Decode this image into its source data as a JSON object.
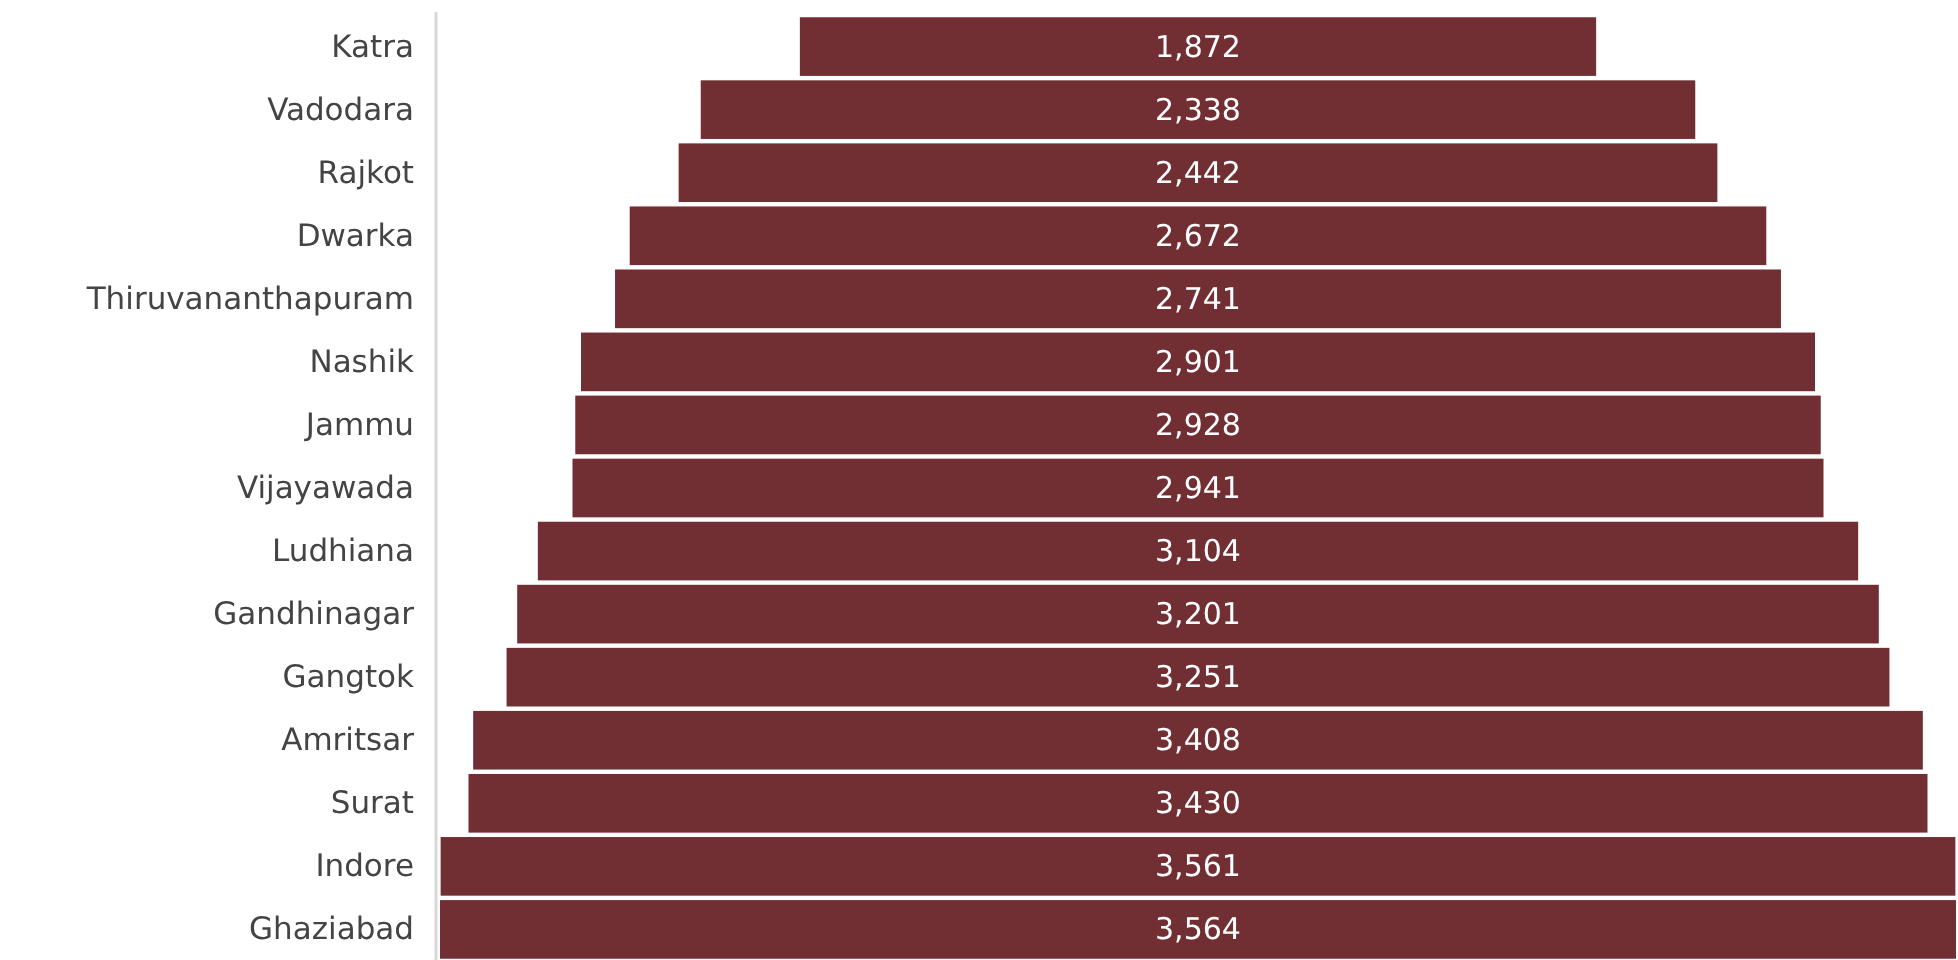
{
  "chart_data": {
    "type": "other",
    "categories": [
      "Katra",
      "Vadodara",
      "Rajkot",
      "Dwarka",
      "Thiruvananthapuram",
      "Nashik",
      "Jammu",
      "Vijayawada",
      "Ludhiana",
      "Gandhinagar",
      "Gangtok",
      "Amritsar",
      "Surat",
      "Indore",
      "Ghaziabad"
    ],
    "values": [
      1872,
      2338,
      2442,
      2672,
      2741,
      2901,
      2928,
      2941,
      3104,
      3201,
      3251,
      3408,
      3430,
      3561,
      3564
    ],
    "value_labels": [
      "1,872",
      "2,338",
      "2,442",
      "2,672",
      "2,741",
      "2,901",
      "2,928",
      "2,941",
      "3,104",
      "3,201",
      "3,251",
      "3,408",
      "3,430",
      "3,561",
      "3,564"
    ],
    "color": "#722f33"
  }
}
